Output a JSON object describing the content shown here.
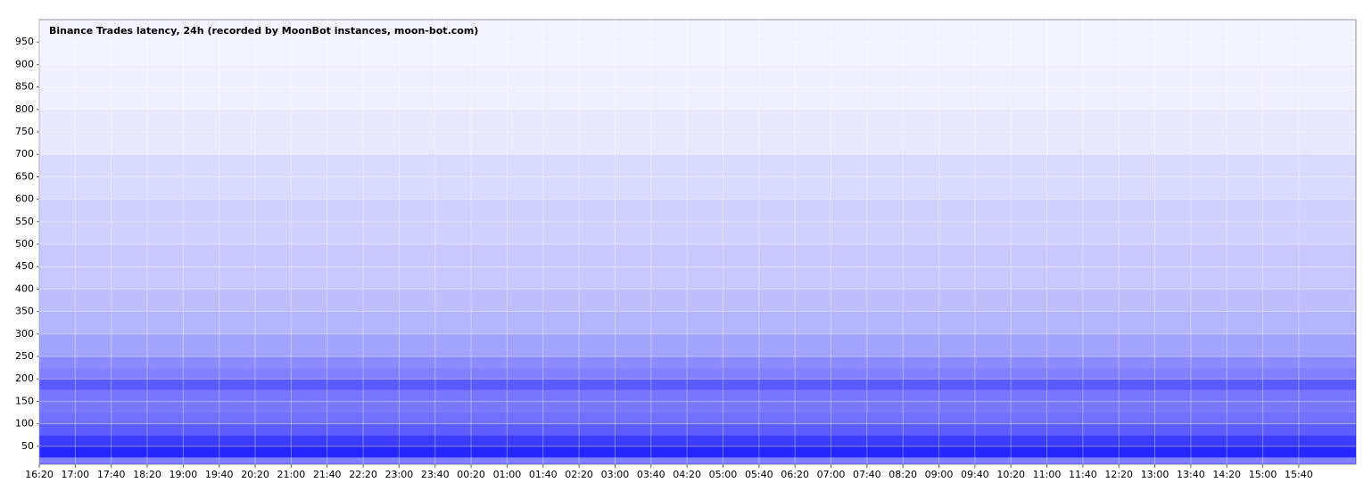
{
  "chart_data": {
    "type": "heatmap",
    "title": "Binance Trades latency, 24h (recorded by MoonBot instances, moon-bot.com)",
    "color": "#1a1aff",
    "ylim": [
      10,
      1000
    ],
    "yticks": [
      50,
      100,
      150,
      200,
      250,
      300,
      350,
      400,
      450,
      500,
      550,
      600,
      650,
      700,
      750,
      800,
      850,
      900,
      950
    ],
    "xticks": [
      "16:20",
      "17:00",
      "17:40",
      "18:20",
      "19:00",
      "19:40",
      "20:20",
      "21:00",
      "21:40",
      "22:20",
      "23:00",
      "23:40",
      "00:20",
      "01:00",
      "01:40",
      "02:20",
      "03:00",
      "03:40",
      "04:20",
      "05:00",
      "05:40",
      "06:20",
      "07:00",
      "07:40",
      "08:20",
      "09:00",
      "09:40",
      "10:20",
      "11:00",
      "11:40",
      "12:20",
      "13:00",
      "13:40",
      "14:20",
      "15:00",
      "15:40"
    ],
    "y_bins": [
      10,
      25,
      50,
      75,
      100,
      125,
      150,
      175,
      200,
      225,
      250,
      300,
      350,
      400,
      500,
      600,
      700,
      800,
      900,
      1000
    ],
    "intensity": [
      0.55,
      0.95,
      0.85,
      0.7,
      0.62,
      0.58,
      0.6,
      0.72,
      0.55,
      0.5,
      0.4,
      0.33,
      0.28,
      0.24,
      0.2,
      0.16,
      0.1,
      0.07,
      0.05
    ],
    "grid": true
  }
}
